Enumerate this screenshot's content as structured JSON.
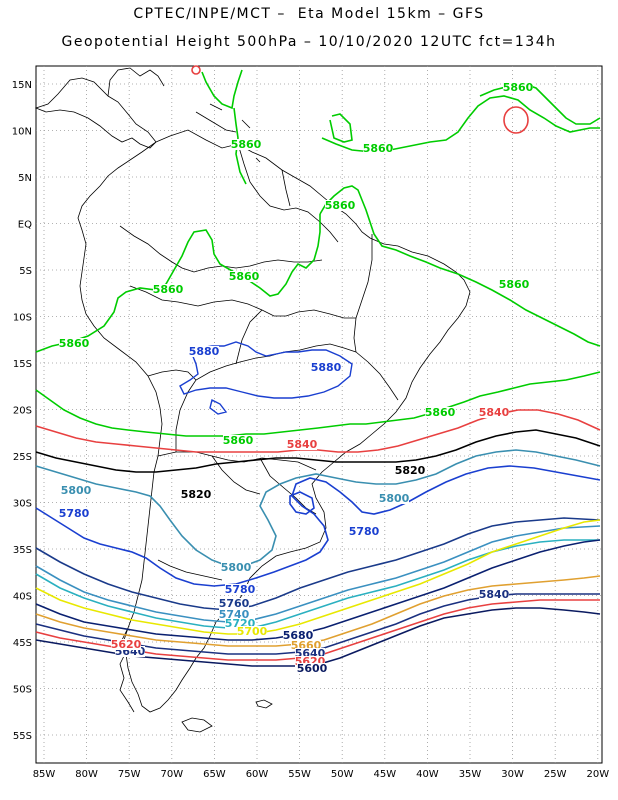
{
  "header": {
    "title_line_1": "CPTEC/INPE/MCT –  Eta Model 15km – GFS",
    "title_line_2": "Geopotential Height 500hPa – 10/10/2020 12UTC fct=134h"
  },
  "axes": {
    "lat_labels": [
      "15N",
      "10N",
      "5N",
      "EQ",
      "5S",
      "10S",
      "15S",
      "20S",
      "25S",
      "30S",
      "35S",
      "40S",
      "45S",
      "50S",
      "55S"
    ],
    "lon_labels": [
      "85W",
      "80W",
      "75W",
      "70W",
      "65W",
      "60W",
      "55W",
      "50W",
      "45W",
      "40W",
      "35W",
      "30W",
      "25W",
      "20W"
    ],
    "grid": "dotted"
  },
  "colors": {
    "c5880": "#00cc00",
    "c5860": "#00cc00",
    "c5840": "#e84040",
    "c5820": "#000000",
    "c5800": "#3a8fb0",
    "c5780": "#1a3fd0",
    "c5760": "#1a3a8a",
    "c5740": "#3a90c0",
    "c5720": "#2ab0c0",
    "c5700": "#e8e800",
    "c5680": "#0a2070",
    "c5660": "#e0a030",
    "c5640": "#1a3080",
    "c5620": "#e84040",
    "c5600": "#0a1a60",
    "coast": "#000000",
    "grid": "#999999"
  },
  "contour_labels": [
    {
      "id": "lbl-5860-a",
      "text": "5860",
      "color": "c5860"
    },
    {
      "id": "lbl-5860-b",
      "text": "5860",
      "color": "c5860"
    },
    {
      "id": "lbl-5860-c",
      "text": "5860",
      "color": "c5860"
    },
    {
      "id": "lbl-5860-d",
      "text": "5860",
      "color": "c5860"
    },
    {
      "id": "lbl-5860-e",
      "text": "5860",
      "color": "c5860"
    },
    {
      "id": "lbl-5860-f",
      "text": "5860",
      "color": "c5860"
    },
    {
      "id": "lbl-5860-g",
      "text": "5860",
      "color": "c5860"
    },
    {
      "id": "lbl-5860-h",
      "text": "5860",
      "color": "c5860"
    },
    {
      "id": "lbl-5860-i",
      "text": "5860",
      "color": "c5860"
    },
    {
      "id": "lbl-5860-j",
      "text": "5860",
      "color": "c5860"
    },
    {
      "id": "lbl-5880-a",
      "text": "5880",
      "color": "c5880b"
    },
    {
      "id": "lbl-5880-b",
      "text": "5880",
      "color": "c5880b"
    },
    {
      "id": "lbl-5840-a",
      "text": "5840",
      "color": "c5840"
    },
    {
      "id": "lbl-5840-b",
      "text": "5840",
      "color": "c5840"
    },
    {
      "id": "lbl-5840-c",
      "text": "5840",
      "color": "c5640"
    },
    {
      "id": "lbl-5820-a",
      "text": "5820",
      "color": "c5820"
    },
    {
      "id": "lbl-5820-b",
      "text": "5820",
      "color": "c5820"
    },
    {
      "id": "lbl-5800-a",
      "text": "5800",
      "color": "c5800"
    },
    {
      "id": "lbl-5800-b",
      "text": "5800",
      "color": "c5800"
    },
    {
      "id": "lbl-5800-c",
      "text": "5800",
      "color": "c5800"
    },
    {
      "id": "lbl-5780-a",
      "text": "5780",
      "color": "c5780"
    },
    {
      "id": "lbl-5780-b",
      "text": "5780",
      "color": "c5780"
    },
    {
      "id": "lbl-5780-c",
      "text": "5780",
      "color": "c5780"
    },
    {
      "id": "lbl-5760",
      "text": "5760",
      "color": "c5760"
    },
    {
      "id": "lbl-5740",
      "text": "5740",
      "color": "c5740"
    },
    {
      "id": "lbl-5720",
      "text": "5720",
      "color": "c5720"
    },
    {
      "id": "lbl-5700",
      "text": "5700",
      "color": "c5700"
    },
    {
      "id": "lbl-5680",
      "text": "5680",
      "color": "c5680"
    },
    {
      "id": "lbl-5660",
      "text": "5660",
      "color": "c5660"
    },
    {
      "id": "lbl-5640",
      "text": "5640",
      "color": "c5640"
    },
    {
      "id": "lbl-5620",
      "text": "5620",
      "color": "c5620"
    },
    {
      "id": "lbl-5600",
      "text": "5600",
      "color": "c5600"
    },
    {
      "id": "lbl-5640-w",
      "text": "5640",
      "color": "c5640"
    },
    {
      "id": "lbl-5620-w",
      "text": "5620",
      "color": "c5620"
    }
  ]
}
